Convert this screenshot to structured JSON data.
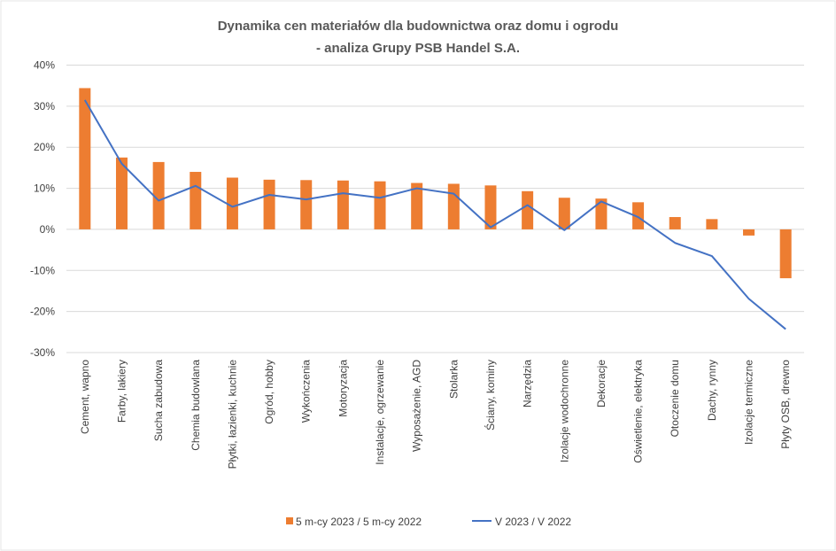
{
  "chart_data": {
    "type": "bar",
    "title": [
      "Dynamika cen materiałów dla budownictwa oraz domu i ogrodu",
      "- analiza Grupy PSB Handel S.A."
    ],
    "xlabel": "",
    "ylabel": "",
    "ylim": [
      -30,
      40
    ],
    "yticks": [
      "40%",
      "30%",
      "20%",
      "10%",
      "0%",
      "-10%",
      "-20%",
      "-30%"
    ],
    "grid": true,
    "legend_position": "bottom",
    "categories": [
      "Cement, wapno",
      "Farby, lakiery",
      "Sucha zabudowa",
      "Chemia budowlana",
      "Płytki, łazienki, kuchnie",
      "Ogród, hobby",
      "Wykończenia",
      "Motoryzacja",
      "Instalacje, ogrzewanie",
      "Wyposażenie, AGD",
      "Stolarka",
      "Ściany, kominy",
      "Narzędzia",
      "Izolacje wodochronne",
      "Dekoracje",
      "Oświetlenie, elektryka",
      "Otoczenie domu",
      "Dachy, rynny",
      "Izolacje termiczne",
      "Płyty OSB, drewno"
    ],
    "series": [
      {
        "name": "5 m-cy 2023 / 5 m-cy 2022",
        "type": "bar",
        "color": "#ED7D31",
        "values": [
          34.4,
          17.5,
          16.4,
          14.0,
          12.6,
          12.1,
          12.0,
          11.9,
          11.7,
          11.3,
          11.1,
          10.7,
          9.3,
          7.7,
          7.5,
          6.6,
          3.0,
          2.5,
          -1.5,
          -11.9
        ]
      },
      {
        "name": "V 2023 / V 2022",
        "type": "line",
        "color": "#4472C4",
        "values": [
          31.5,
          16.0,
          7.0,
          10.6,
          5.5,
          8.4,
          7.3,
          8.8,
          7.7,
          10.0,
          8.7,
          0.5,
          5.9,
          -0.2,
          6.8,
          3.0,
          -3.3,
          -6.5,
          -16.9,
          -24.3
        ]
      }
    ]
  }
}
